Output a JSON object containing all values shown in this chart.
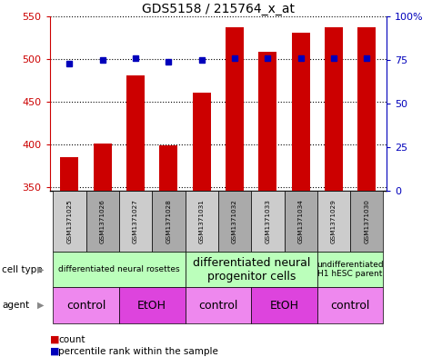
{
  "title": "GDS5158 / 215764_x_at",
  "samples": [
    "GSM1371025",
    "GSM1371026",
    "GSM1371027",
    "GSM1371028",
    "GSM1371031",
    "GSM1371032",
    "GSM1371033",
    "GSM1371034",
    "GSM1371029",
    "GSM1371030"
  ],
  "counts": [
    385,
    401,
    480,
    398,
    460,
    537,
    508,
    531,
    537,
    537
  ],
  "percentiles": [
    73,
    75,
    76,
    74,
    75,
    76,
    76,
    76,
    76,
    76
  ],
  "ylim_left": [
    345,
    550
  ],
  "ylim_right": [
    0,
    100
  ],
  "yticks_left": [
    350,
    400,
    450,
    500,
    550
  ],
  "yticks_right": [
    0,
    25,
    50,
    75,
    100
  ],
  "bar_color": "#CC0000",
  "dot_color": "#0000BB",
  "bar_width": 0.55,
  "cell_type_groups": [
    {
      "label": "differentiated neural rosettes",
      "start": 0,
      "end": 3,
      "fontsize": 6.5
    },
    {
      "label": "differentiated neural\nprogenitor cells",
      "start": 4,
      "end": 7,
      "fontsize": 9
    },
    {
      "label": "undifferentiated\nH1 hESC parent",
      "start": 8,
      "end": 9,
      "fontsize": 6.5
    }
  ],
  "agent_groups": [
    {
      "label": "control",
      "start": 0,
      "end": 1,
      "bg": "#EE88EE"
    },
    {
      "label": "EtOH",
      "start": 2,
      "end": 3,
      "bg": "#DD44DD"
    },
    {
      "label": "control",
      "start": 4,
      "end": 5,
      "bg": "#EE88EE"
    },
    {
      "label": "EtOH",
      "start": 6,
      "end": 7,
      "bg": "#DD44DD"
    },
    {
      "label": "control",
      "start": 8,
      "end": 9,
      "bg": "#EE88EE"
    }
  ],
  "cell_type_bg": "#BBFFBB",
  "sample_bg_even": "#CCCCCC",
  "sample_bg_odd": "#AAAAAA",
  "grid_color": "#000000",
  "axis_color_left": "#CC0000",
  "axis_color_right": "#0000BB",
  "legend_count_color": "#CC0000",
  "legend_dot_color": "#0000BB"
}
